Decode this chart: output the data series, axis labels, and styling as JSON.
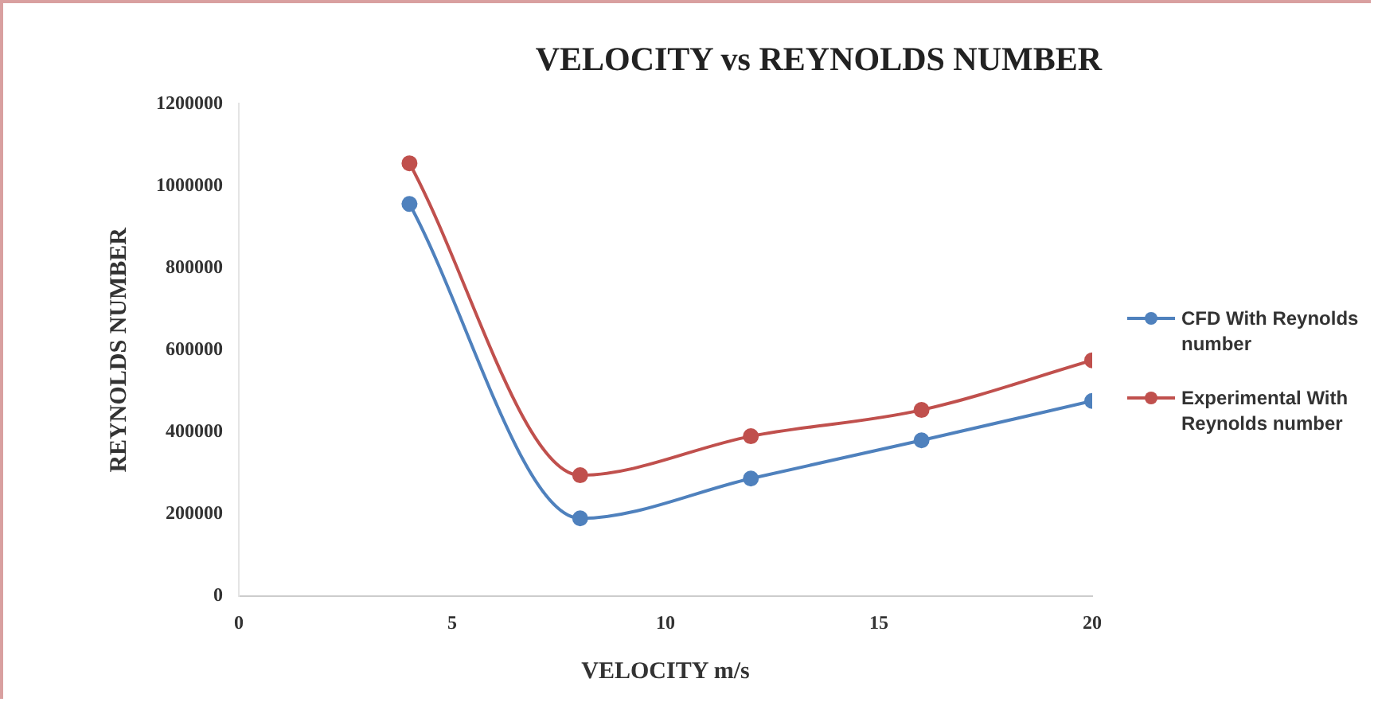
{
  "chart_data": {
    "type": "line",
    "title": "VELOCITY vs REYNOLDS NUMBER",
    "xlabel": "VELOCITY m/s",
    "ylabel": "REYNOLDS NUMBER",
    "x": [
      4,
      8,
      12,
      16,
      20
    ],
    "series": [
      {
        "name": "CFD With Reynolds number",
        "color": "#4f81bd",
        "values": [
          956000,
          190000,
          287000,
          380000,
          476000
        ]
      },
      {
        "name": "Experimental With Reynolds number",
        "color": "#c0504d",
        "values": [
          1055000,
          295000,
          390000,
          454000,
          575000
        ]
      }
    ],
    "xlim": [
      0,
      20
    ],
    "xticks": [
      0,
      5,
      10,
      15,
      20
    ],
    "ylim": [
      0,
      1200000
    ],
    "yticks": [
      0,
      200000,
      400000,
      600000,
      800000,
      1000000,
      1200000
    ],
    "grid": false,
    "legend": "right",
    "marker": "circle",
    "line_style": "solid"
  }
}
